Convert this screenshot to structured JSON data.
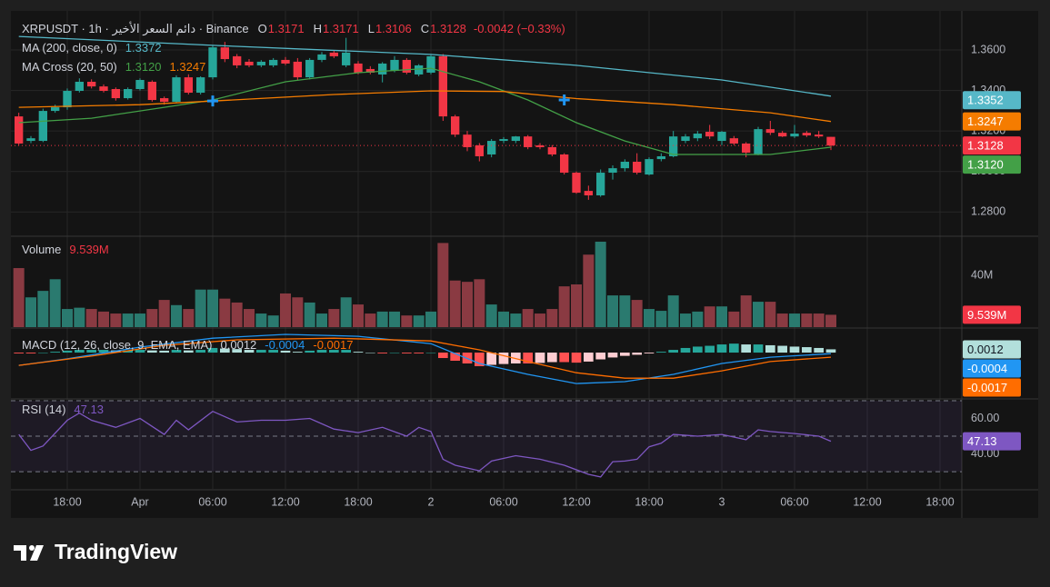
{
  "brand": "TradingView",
  "chart_data": [
    {
      "type": "candlestick",
      "title": "XRPUSDT · 1h · دائم السعر الأخير · Binance",
      "ohlc": [
        {
          "name": "O",
          "value": 1.3171
        },
        {
          "name": "H",
          "value": 1.3171
        },
        {
          "name": "L",
          "value": 1.3106
        },
        {
          "name": "C",
          "value": 1.3128
        }
      ],
      "change": {
        "value": -0.0042,
        "label": "-0.0042 (−0.33%)"
      },
      "x": [
        14,
        15,
        16,
        17,
        18,
        19,
        20,
        21,
        22,
        23,
        24,
        25,
        26,
        27,
        28,
        29,
        30,
        31,
        32,
        33,
        34,
        35,
        36,
        37,
        38,
        39,
        40,
        41,
        42,
        43,
        44,
        45,
        46,
        47,
        48,
        49,
        50,
        51,
        52,
        53,
        54,
        55,
        56,
        57,
        58,
        59,
        60,
        61,
        62,
        63,
        64,
        65,
        66,
        67,
        68,
        69,
        70,
        71,
        72,
        73,
        74,
        75,
        76,
        77,
        78,
        79,
        80,
        81
      ],
      "open": [
        1.3272,
        1.3151,
        1.3151,
        1.3299,
        1.3317,
        1.3398,
        1.3443,
        1.342,
        1.3407,
        1.3362,
        1.3407,
        1.3443,
        1.3362,
        1.3344,
        1.3465,
        1.3389,
        1.3465,
        1.3613,
        1.3569,
        1.3542,
        1.3524,
        1.3524,
        1.3551,
        1.3542,
        1.3465,
        1.3551,
        1.3587,
        1.3524,
        1.3533,
        1.3506,
        1.3479,
        1.3497,
        1.3551,
        1.3479,
        1.3488,
        1.3569,
        1.3272,
        1.3182,
        1.3129,
        1.3084,
        1.3151,
        1.3151,
        1.3173,
        1.3129,
        1.312,
        1.3084,
        1.2994,
        1.2904,
        1.2882,
        1.2994,
        1.3016,
        1.3048,
        1.2985,
        1.3061,
        1.3075,
        1.3151,
        1.3164,
        1.3196,
        1.3151,
        1.3164,
        1.3138,
        1.3084,
        1.3209,
        1.3191,
        1.3173,
        1.3191,
        1.3182,
        1.3171
      ],
      "high": [
        1.329,
        1.3175,
        1.331,
        1.333,
        1.341,
        1.346,
        1.3455,
        1.343,
        1.3415,
        1.3415,
        1.346,
        1.345,
        1.337,
        1.3475,
        1.348,
        1.347,
        1.362,
        1.364,
        1.358,
        1.3555,
        1.355,
        1.356,
        1.3565,
        1.356,
        1.356,
        1.359,
        1.36,
        1.366,
        1.3545,
        1.352,
        1.354,
        1.357,
        1.356,
        1.353,
        1.3575,
        1.358,
        1.328,
        1.32,
        1.314,
        1.316,
        1.317,
        1.3175,
        1.318,
        1.314,
        1.313,
        1.309,
        1.3,
        1.293,
        1.301,
        1.303,
        1.306,
        1.309,
        1.307,
        1.309,
        1.32,
        1.3185,
        1.32,
        1.323,
        1.32,
        1.3175,
        1.3145,
        1.322,
        1.325,
        1.32,
        1.323,
        1.32,
        1.32,
        1.3171
      ],
      "low": [
        1.313,
        1.314,
        1.3145,
        1.329,
        1.3305,
        1.339,
        1.341,
        1.339,
        1.335,
        1.3355,
        1.34,
        1.3345,
        1.333,
        1.334,
        1.338,
        1.338,
        1.3455,
        1.354,
        1.351,
        1.3515,
        1.3515,
        1.3515,
        1.3525,
        1.345,
        1.3455,
        1.354,
        1.356,
        1.3515,
        1.348,
        1.348,
        1.344,
        1.349,
        1.348,
        1.347,
        1.348,
        1.325,
        1.317,
        1.31,
        1.305,
        1.307,
        1.314,
        1.314,
        1.311,
        1.311,
        1.3075,
        1.2985,
        1.289,
        1.286,
        1.2875,
        1.296,
        1.3,
        1.2985,
        1.298,
        1.305,
        1.307,
        1.314,
        1.315,
        1.316,
        1.313,
        1.313,
        1.307,
        1.308,
        1.318,
        1.317,
        1.3165,
        1.317,
        1.3165,
        1.3106
      ],
      "close": [
        1.3138,
        1.3164,
        1.3299,
        1.3317,
        1.3398,
        1.3443,
        1.342,
        1.3398,
        1.3362,
        1.3407,
        1.3452,
        1.3353,
        1.3344,
        1.3465,
        1.3389,
        1.3465,
        1.3613,
        1.3555,
        1.3524,
        1.3524,
        1.3542,
        1.3551,
        1.3533,
        1.3465,
        1.3551,
        1.3578,
        1.3569,
        1.3587,
        1.3488,
        1.3488,
        1.3533,
        1.3551,
        1.3488,
        1.3524,
        1.3569,
        1.3272,
        1.3182,
        1.312,
        1.3075,
        1.3151,
        1.316,
        1.3173,
        1.312,
        1.312,
        1.3084,
        1.2994,
        1.2895,
        1.2882,
        1.2994,
        1.3016,
        1.3048,
        1.2994,
        1.3061,
        1.3075,
        1.3173,
        1.3173,
        1.3187,
        1.3173,
        1.3196,
        1.3138,
        1.3093,
        1.3209,
        1.3191,
        1.3173,
        1.3187,
        1.3178,
        1.3173,
        1.3128
      ],
      "up_color": "#26a69a",
      "down_color": "#f23645",
      "xlim": [
        13.35,
        91.8
      ],
      "xticks": [
        {
          "value": 18,
          "label": "18:00"
        },
        {
          "value": 24,
          "label": "Apr"
        },
        {
          "value": 30,
          "label": "06:00"
        },
        {
          "value": 36,
          "label": "12:00"
        },
        {
          "value": 42,
          "label": "18:00"
        },
        {
          "value": 48,
          "label": "2"
        },
        {
          "value": 54,
          "label": "06:00"
        },
        {
          "value": 60,
          "label": "12:00"
        },
        {
          "value": 66,
          "label": "18:00"
        },
        {
          "value": 72,
          "label": "3"
        },
        {
          "value": 78,
          "label": "06:00"
        },
        {
          "value": 84,
          "label": "12:00"
        },
        {
          "value": 90,
          "label": "18:00"
        }
      ],
      "ylim": [
        1.2689,
        1.3793
      ],
      "yticks": [
        {
          "value": 1.36,
          "label": "1.3600"
        },
        {
          "value": 1.34,
          "label": "1.3400"
        },
        {
          "value": 1.32,
          "label": "1.3200"
        },
        {
          "value": 1.3,
          "label": "1.3000"
        },
        {
          "value": 1.28,
          "label": "1.2800"
        }
      ],
      "grid": true,
      "overlays": [
        {
          "name": "MA (200, close, 0)",
          "series": [
            {
              "color": "#56b8c8",
              "x": [
                14,
                30,
                48,
                60,
                72,
                81
              ],
              "values": [
                1.3667,
                1.3623,
                1.3578,
                1.3524,
                1.3452,
                1.3372
              ],
              "last": {
                "value": 1.3372,
                "label": "1.3372"
              },
              "scale_label": {
                "value": 1.3352,
                "label": "1.3352"
              }
            }
          ]
        },
        {
          "name": "MA Cross (20, 50)",
          "series": [
            {
              "color": "#43a047",
              "x": [
                14,
                20,
                26,
                30,
                36,
                42,
                48,
                52,
                56,
                60,
                64,
                68,
                72,
                76,
                81
              ],
              "values": [
                1.3241,
                1.3263,
                1.3317,
                1.3353,
                1.3443,
                1.3488,
                1.351,
                1.3443,
                1.3353,
                1.3241,
                1.3151,
                1.3084,
                1.3084,
                1.3084,
                1.312
              ],
              "last": {
                "value": 1.312,
                "label": "1.3120"
              }
            },
            {
              "color": "#f57c00",
              "x": [
                14,
                24,
                30,
                40,
                48,
                54,
                60,
                68,
                76,
                81
              ],
              "values": [
                1.3317,
                1.333,
                1.3348,
                1.338,
                1.3398,
                1.3395,
                1.336,
                1.333,
                1.329,
                1.3247
              ],
              "last": {
                "value": 1.3247,
                "label": "1.3247"
              }
            }
          ],
          "crosses": {
            "color": "#2196f3",
            "x": [
              30,
              59
            ],
            "values": [
              1.3348,
              1.3353
            ]
          }
        }
      ]
    },
    {
      "type": "bar",
      "title": "Volume",
      "values": [
        45.6,
        23,
        28,
        37,
        14,
        15,
        14,
        12,
        10.5,
        10.5,
        10.5,
        14,
        21,
        17,
        14,
        29,
        29,
        22,
        19,
        14,
        10.5,
        9,
        26,
        23,
        19,
        10.5,
        14,
        23,
        17.5,
        10.5,
        12,
        12,
        9,
        9,
        12,
        65,
        36,
        35,
        37,
        17.5,
        12,
        10.5,
        14,
        10.5,
        14,
        31.5,
        33,
        56,
        66,
        24.5,
        24.5,
        21,
        14,
        12.6,
        24.5,
        10.5,
        12,
        16,
        16,
        12,
        24.5,
        19.6,
        19.6,
        10.5,
        10.5,
        10.5,
        10.5,
        9.539
      ],
      "last": {
        "value": 9.539,
        "label": "9.539M"
      },
      "up_color": "#2a7a6f",
      "down_color": "#8a3a42",
      "ylim": [
        0,
        68.8
      ],
      "yticks": [
        {
          "value": 40,
          "label": "40M"
        }
      ]
    },
    {
      "type": "macd",
      "title": "MACD (12, 26, close, 9, EMA, EMA)",
      "histogram": {
        "values": [
          -0.0003,
          -0.0003,
          0.0,
          0.0003,
          0.0007,
          0.001,
          0.001,
          0.001,
          0.0008,
          0.0008,
          0.001,
          0.0008,
          0.0007,
          0.001,
          0.0008,
          0.001,
          0.0017,
          0.0015,
          0.0013,
          0.001,
          0.001,
          0.001,
          0.0007,
          0.0003,
          0.0007,
          0.001,
          0.001,
          0.001,
          0.0003,
          0.0,
          -0.0003,
          0.0,
          -0.0003,
          -0.0003,
          0.0,
          -0.002,
          -0.003,
          -0.004,
          -0.005,
          -0.0045,
          -0.0042,
          -0.004,
          -0.004,
          -0.0038,
          -0.0035,
          -0.0035,
          -0.0037,
          -0.0033,
          -0.0025,
          -0.0018,
          -0.0012,
          -0.0008,
          -0.0003,
          0.0003,
          0.001,
          0.0017,
          0.0022,
          0.0025,
          0.003,
          0.0033,
          0.003,
          0.003,
          0.0027,
          0.0025,
          0.0022,
          0.002,
          0.0017,
          0.0012
        ],
        "colors": [
          "#26a69a",
          "#b2dfdb",
          "#ffcdd2",
          "#ff5252"
        ]
      },
      "series": [
        {
          "color": "#2196f3",
          "x": [
            14,
            18,
            24,
            30,
            36,
            42,
            48,
            52,
            56,
            60,
            64,
            68,
            72,
            76,
            81
          ],
          "values": [
            -0.0047,
            -0.0023,
            0.002,
            0.0053,
            0.0067,
            0.006,
            0.0033,
            -0.004,
            -0.008,
            -0.0114,
            -0.0107,
            -0.008,
            -0.004,
            -0.0017,
            -0.0004
          ]
        },
        {
          "color": "#ff6d00",
          "x": [
            14,
            20,
            26,
            32,
            40,
            48,
            52,
            56,
            60,
            64,
            68,
            72,
            76,
            81
          ],
          "values": [
            -0.0047,
            -0.0013,
            0.0027,
            0.0047,
            0.0053,
            0.0043,
            0.001,
            -0.0033,
            -0.0074,
            -0.0094,
            -0.0094,
            -0.0067,
            -0.0033,
            -0.0017
          ]
        }
      ],
      "ylim": [
        -0.0167,
        0.0087
      ]
    },
    {
      "type": "line",
      "title": "RSI (14)",
      "series": [
        {
          "color": "#7e57c2",
          "x": [
            14,
            15,
            16,
            18,
            19,
            20,
            22,
            24,
            26,
            27,
            28,
            30,
            32,
            34,
            36,
            38,
            40,
            42,
            44,
            46,
            47,
            48,
            49,
            50,
            52,
            53,
            55,
            57,
            59,
            61,
            62,
            63,
            64,
            65,
            66,
            67,
            68,
            70,
            72,
            74,
            75,
            76,
            78,
            80,
            81
          ],
          "values": [
            51,
            42,
            44.5,
            59,
            63,
            59,
            55,
            60,
            51,
            59,
            53.6,
            64,
            58,
            59,
            59,
            60,
            54,
            52,
            55,
            50,
            55,
            52.6,
            37,
            33.6,
            30.5,
            36,
            39,
            37,
            33.6,
            28.5,
            27,
            35.6,
            36,
            37,
            44,
            46,
            51,
            50,
            51,
            48,
            53.6,
            52.6,
            51.5,
            50,
            47.13
          ]
        }
      ],
      "bands": [
        70,
        50,
        30
      ],
      "ylim": [
        20.3,
        70.5
      ],
      "yticks": [
        {
          "value": 60,
          "label": "60.00"
        },
        {
          "value": 40,
          "label": "40.00"
        }
      ]
    }
  ]
}
